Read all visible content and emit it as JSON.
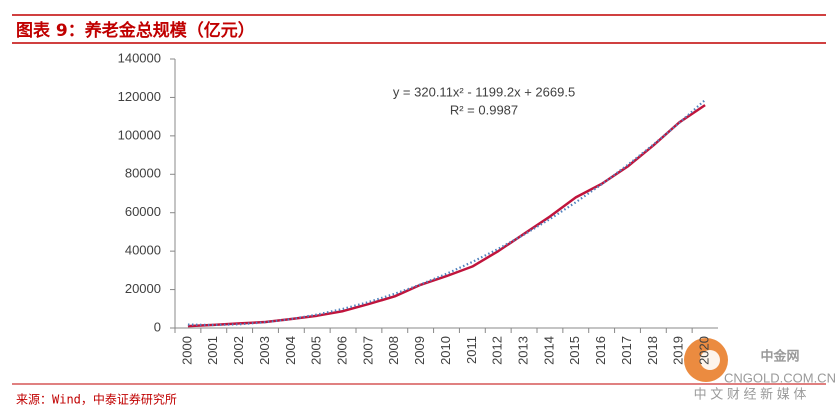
{
  "header": {
    "title": "图表 9：养老金总规模（亿元）"
  },
  "chart_data": {
    "type": "line",
    "categories": [
      "2000",
      "2001",
      "2002",
      "2003",
      "2004",
      "2005",
      "2006",
      "2007",
      "2008",
      "2009",
      "2010",
      "2011",
      "2012",
      "2013",
      "2014",
      "2015",
      "2016",
      "2017",
      "2018",
      "2019",
      "2020"
    ],
    "series": [
      {
        "color": "#c0143c",
        "values": [
          1000,
          1600,
          2400,
          3100,
          4700,
          6400,
          8800,
          12500,
          16500,
          22500,
          27000,
          32000,
          40000,
          49000,
          58000,
          68000,
          75000,
          84000,
          95000,
          107000,
          116000
        ]
      },
      {
        "color": "#4f81bd",
        "style": "dotted",
        "values": [
          1790,
          1552,
          1953,
          2994,
          4676,
          6998,
          9960,
          13563,
          17806,
          22689,
          28212,
          34375,
          41179,
          48622,
          56706,
          65430,
          74795,
          84800,
          95444,
          106730,
          118655
        ]
      }
    ],
    "ylim": [
      0,
      140000
    ],
    "yticks": [
      0,
      20000,
      40000,
      60000,
      80000,
      100000,
      120000,
      140000
    ],
    "annotations": [
      "y = 320.11x² - 1199.2x + 2669.5",
      "R² = 0.9987"
    ]
  },
  "source": "来源：Wind，中泰证券研究所",
  "watermark": {
    "brand": "中金网",
    "site": "CNGOLD.COM.CN",
    "slogan": "中 文 财 经 新 媒 体"
  }
}
